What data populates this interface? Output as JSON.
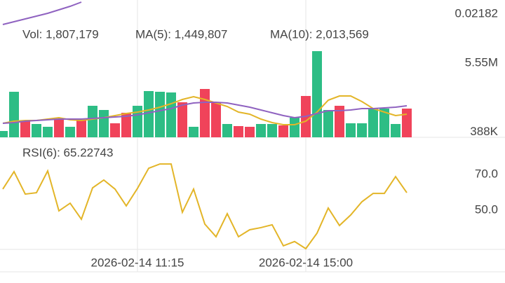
{
  "chart_data": [
    {
      "type": "line",
      "ylim": [
        0.0217,
        0.0219
      ],
      "yticks": [
        0.02182
      ],
      "series": [
        {
          "color": "#8f62c0",
          "values": [
            0.021745,
            0.021765,
            0.021785,
            0.021805,
            0.021825,
            0.02185,
            0.021875,
            0.021905
          ]
        }
      ]
    },
    {
      "type": "bar",
      "title": "Vol: 1,807,179",
      "ylim": [
        0,
        6860000
      ],
      "yticks": [
        {
          "value": 5550000,
          "label": "5.55M"
        },
        {
          "value": 388000,
          "label": "388K"
        }
      ],
      "values": [
        471000,
        3403000,
        1257000,
        995000,
        785000,
        1309000,
        785000,
        1309000,
        2356000,
        2042000,
        1047000,
        1833000,
        2356000,
        3456000,
        3403000,
        3351000,
        2618000,
        785000,
        3613000,
        2618000,
        995000,
        838000,
        785000,
        995000,
        995000,
        890000,
        1466000,
        3089000,
        6440000,
        2042000,
        2356000,
        1047000,
        1047000,
        2199000,
        2147000,
        995000,
        2147000
      ],
      "colors": [
        "#2dbd85",
        "#2dbd85",
        "#f0435a",
        "#2dbd85",
        "#2dbd85",
        "#f0435a",
        "#2dbd85",
        "#f0435a",
        "#2dbd85",
        "#2dbd85",
        "#f0435a",
        "#f0435a",
        "#2dbd85",
        "#2dbd85",
        "#2dbd85",
        "#2dbd85",
        "#f0435a",
        "#2dbd85",
        "#f0435a",
        "#f0435a",
        "#2dbd85",
        "#f0435a",
        "#f0435a",
        "#2dbd85",
        "#2dbd85",
        "#f0435a",
        "#2dbd85",
        "#f0435a",
        "#2dbd85",
        "#2dbd85",
        "#f0435a",
        "#2dbd85",
        "#2dbd85",
        "#2dbd85",
        "#2dbd85",
        "#2dbd85",
        "#f0435a"
      ],
      "series": [
        {
          "name": "MA(5): 1,449,807",
          "color": "#e3b528",
          "values": [
            1047000,
            1204000,
            1257000,
            1257000,
            1361000,
            1466000,
            1309000,
            1257000,
            1361000,
            1466000,
            1623000,
            1780000,
            1885000,
            2042000,
            2251000,
            2513000,
            2827000,
            3037000,
            2827000,
            2566000,
            2304000,
            1885000,
            1728000,
            1361000,
            1100000,
            942000,
            942000,
            1204000,
            1885000,
            2775000,
            3089000,
            3089000,
            2670000,
            2147000,
            1885000,
            1623000,
            1728000
          ]
        },
        {
          "name": "MA(10): 2,013,569",
          "color": "#8f62c0",
          "values": [
            1047000,
            1100000,
            1204000,
            1257000,
            1309000,
            1361000,
            1361000,
            1361000,
            1414000,
            1466000,
            1518000,
            1571000,
            1676000,
            1833000,
            1990000,
            2147000,
            2409000,
            2566000,
            2618000,
            2618000,
            2566000,
            2409000,
            2251000,
            2042000,
            1833000,
            1623000,
            1466000,
            1571000,
            1780000,
            1990000,
            1990000,
            2042000,
            2147000,
            2147000,
            2199000,
            2251000,
            2356000
          ]
        }
      ]
    },
    {
      "type": "line",
      "ylim": [
        28,
        77.5
      ],
      "yticks": [
        {
          "value": 70,
          "label": "70.0"
        },
        {
          "value": 50,
          "label": "50.0"
        }
      ],
      "categories": [
        null,
        null,
        null,
        null,
        null,
        null,
        null,
        null,
        null,
        null,
        null,
        null,
        "2026-02-14 11:15",
        null,
        null,
        null,
        null,
        null,
        null,
        null,
        null,
        null,
        null,
        null,
        null,
        null,
        null,
        "2026-02-14 15:00",
        null,
        null,
        null,
        null,
        null,
        null,
        null,
        null,
        null
      ],
      "series": [
        {
          "name": "RSI(6): 65.22743",
          "color": "#e3b528",
          "values": [
            61.8,
            71.6,
            59.0,
            59.8,
            72.0,
            49.6,
            53.9,
            44.9,
            62.5,
            66.9,
            61.8,
            52.4,
            62.2,
            73.5,
            75.9,
            75.9,
            48.8,
            61.8,
            42.2,
            35.1,
            48.0,
            35.1,
            39.0,
            40.2,
            41.8,
            30.0,
            32.4,
            28.4,
            37.1,
            51.2,
            41.4,
            47.3,
            54.7,
            59.4,
            59.4,
            68.8,
            59.8
          ]
        }
      ]
    }
  ]
}
